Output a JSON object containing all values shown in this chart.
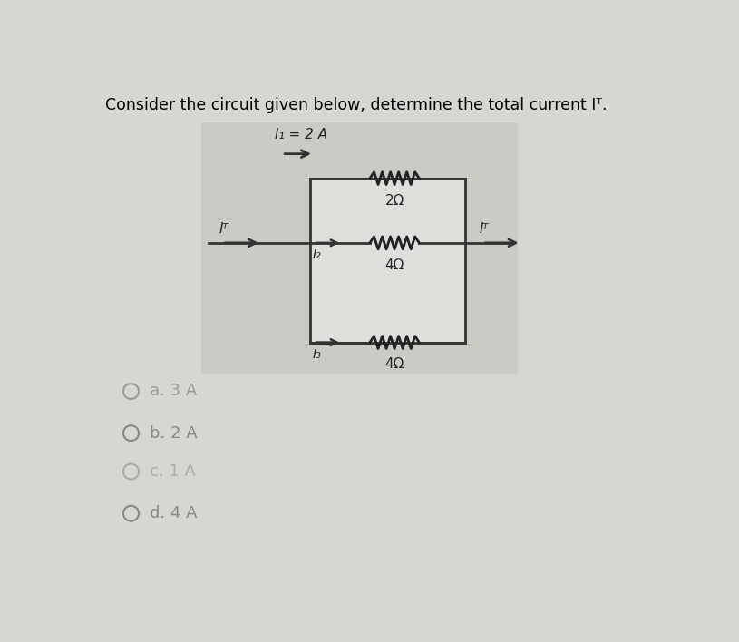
{
  "title": "Consider the circuit given below, determine the total current Iᵀ.",
  "bg_color": "#d4d8d0",
  "circuit_panel_color": "#c8ccc5",
  "box_fill": "#dde0da",
  "options": [
    "a. 3 A",
    "b. 2 A",
    "c. 1 A",
    "d. 4 A"
  ],
  "I1_label": "I₁ = 2 A",
  "IT_label_left": "Iᵀ",
  "IT_label_right": "Iᵀ",
  "I2_label": "I₂",
  "I3_label": "I₃",
  "R1_label": "2Ω",
  "R2_label": "4Ω",
  "R3_label": "4Ω"
}
